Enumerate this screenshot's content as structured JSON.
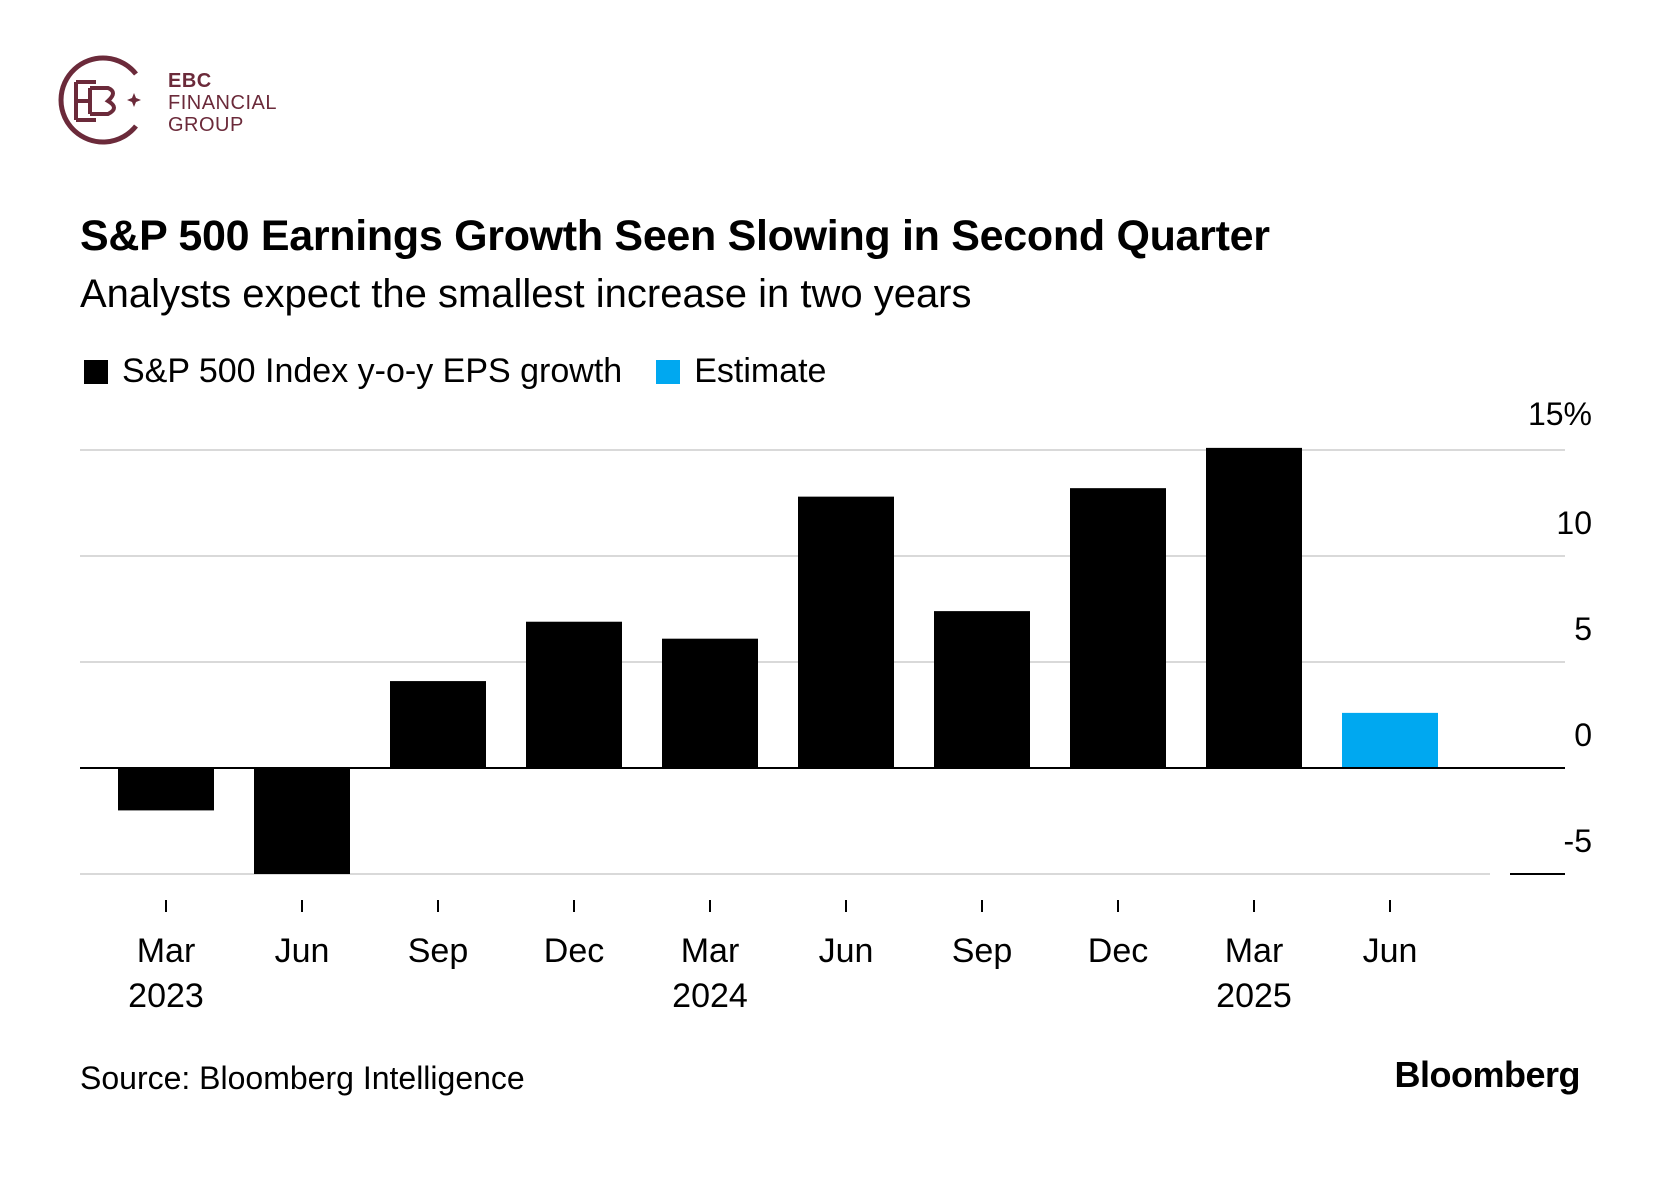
{
  "logo": {
    "line1": "EBC",
    "line2": "FINANCIAL",
    "line3": "GROUP",
    "color": "#6b2a3a"
  },
  "legend": {
    "actual_label": "S&P 500 Index y-o-y EPS growth",
    "estimate_label": "Estimate"
  },
  "colors": {
    "actual": "#000000",
    "estimate": "#00a8f0",
    "grid": "#d9d9d9"
  },
  "source": "Source: Bloomberg Intelligence",
  "brand": "Bloomberg",
  "chart_data": {
    "type": "bar",
    "title": "S&P 500 Earnings Growth Seen Slowing in Second Quarter",
    "subtitle": "Analysts expect the smallest increase in two years",
    "xlabel": "",
    "ylabel": "",
    "ylim": [
      -5,
      15
    ],
    "yticks": [
      15,
      10,
      5,
      0,
      -5
    ],
    "ytick_labels": [
      "15%",
      "10",
      "5",
      "0",
      "-5"
    ],
    "categories": [
      "Mar",
      "Jun",
      "Sep",
      "Dec",
      "Mar",
      "Jun",
      "Sep",
      "Dec",
      "Mar",
      "Jun"
    ],
    "year_labels": [
      "2023",
      "",
      "",
      "",
      "2024",
      "",
      "",
      "",
      "2025",
      ""
    ],
    "values": [
      -2.0,
      -5.0,
      4.1,
      6.9,
      6.1,
      12.8,
      7.4,
      13.2,
      15.1,
      2.6
    ],
    "is_estimate": [
      false,
      false,
      false,
      false,
      false,
      false,
      false,
      false,
      false,
      true
    ],
    "grid": true,
    "legend_position": "top-left"
  }
}
